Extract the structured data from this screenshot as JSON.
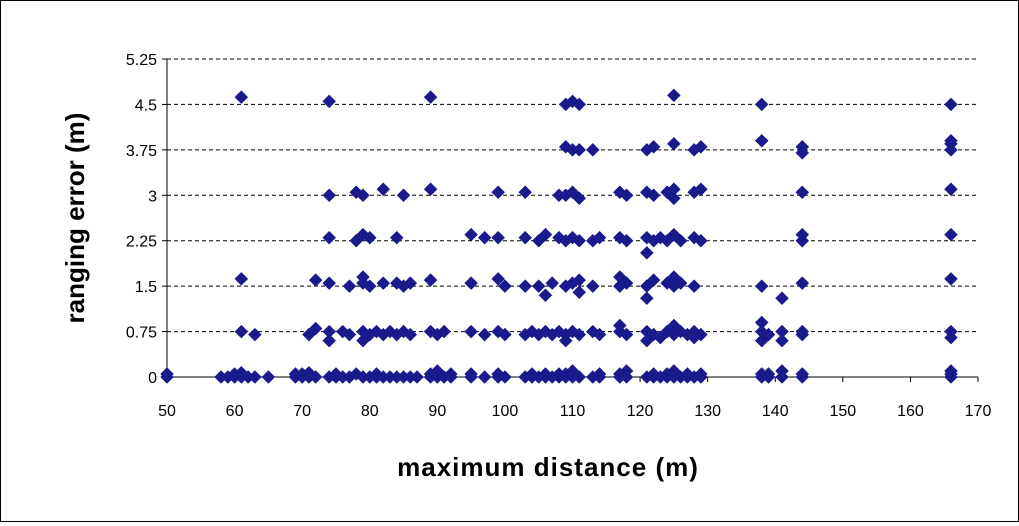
{
  "chart_data": {
    "type": "scatter",
    "title": "",
    "xlabel": "maximum distance (m)",
    "ylabel": "ranging error (m)",
    "xlim": [
      50,
      170
    ],
    "ylim": [
      0,
      5.25
    ],
    "x_ticks": [
      "50",
      "60",
      "70",
      "80",
      "90",
      "100",
      "110",
      "120",
      "130",
      "140",
      "150",
      "160",
      "170"
    ],
    "y_ticks": [
      "0",
      "0.75",
      "1.5",
      "2.25",
      "3",
      "3.75",
      "4.5",
      "5.25"
    ],
    "grid": "horizontal dashed",
    "marker": "diamond",
    "marker_color": "#1a1a8c",
    "legend": "none",
    "points": [
      [
        50,
        0
      ],
      [
        50,
        0.05
      ],
      [
        58,
        0
      ],
      [
        59,
        0
      ],
      [
        60,
        0
      ],
      [
        60,
        0.05
      ],
      [
        61,
        0
      ],
      [
        61,
        0.07
      ],
      [
        61,
        0.75
      ],
      [
        61,
        1.62
      ],
      [
        61,
        4.62
      ],
      [
        62,
        0
      ],
      [
        63,
        0
      ],
      [
        63,
        0.7
      ],
      [
        65,
        0
      ],
      [
        69,
        0
      ],
      [
        69,
        0.05
      ],
      [
        70,
        0
      ],
      [
        70,
        0.05
      ],
      [
        71,
        0
      ],
      [
        71,
        0.07
      ],
      [
        71,
        0.7
      ],
      [
        72,
        0
      ],
      [
        72,
        0.8
      ],
      [
        72,
        1.6
      ],
      [
        74,
        0
      ],
      [
        74,
        0.75
      ],
      [
        74,
        0.6
      ],
      [
        74,
        1.55
      ],
      [
        74,
        2.3
      ],
      [
        74,
        3
      ],
      [
        74,
        4.55
      ],
      [
        75,
        0
      ],
      [
        75,
        0.05
      ],
      [
        76,
        0
      ],
      [
        76,
        0.75
      ],
      [
        77,
        0
      ],
      [
        77,
        1.5
      ],
      [
        77,
        0.7
      ],
      [
        78,
        3.05
      ],
      [
        78,
        0.05
      ],
      [
        78,
        2.25
      ],
      [
        79,
        0
      ],
      [
        79,
        0.75
      ],
      [
        79,
        1.55
      ],
      [
        79,
        2.35
      ],
      [
        79,
        1.65
      ],
      [
        79,
        3.0
      ],
      [
        79,
        0.6
      ],
      [
        80,
        0
      ],
      [
        80,
        0.7
      ],
      [
        80,
        1.5
      ],
      [
        80,
        2.3
      ],
      [
        81,
        0
      ],
      [
        81,
        0.75
      ],
      [
        81,
        0.05
      ],
      [
        82,
        0
      ],
      [
        82,
        1.55
      ],
      [
        82,
        3.1
      ],
      [
        82,
        0.7
      ],
      [
        83,
        0
      ],
      [
        83,
        0.75
      ],
      [
        84,
        0
      ],
      [
        84,
        1.55
      ],
      [
        84,
        0.7
      ],
      [
        84,
        2.3
      ],
      [
        85,
        0
      ],
      [
        85,
        1.5
      ],
      [
        85,
        3.0
      ],
      [
        85,
        0.75
      ],
      [
        86,
        0
      ],
      [
        86,
        1.55
      ],
      [
        86,
        0.7
      ],
      [
        87,
        0
      ],
      [
        89,
        0
      ],
      [
        89,
        0.05
      ],
      [
        89,
        0.75
      ],
      [
        89,
        1.6
      ],
      [
        89,
        3.1
      ],
      [
        89,
        4.62
      ],
      [
        90,
        0
      ],
      [
        90,
        0.7
      ],
      [
        90,
        0.1
      ],
      [
        91,
        0
      ],
      [
        91,
        0.75
      ],
      [
        92,
        0
      ],
      [
        92,
        0.05
      ],
      [
        95,
        0
      ],
      [
        95,
        0.05
      ],
      [
        95,
        0.75
      ],
      [
        95,
        1.55
      ],
      [
        95,
        2.35
      ],
      [
        97,
        0
      ],
      [
        97,
        0.7
      ],
      [
        97,
        2.3
      ],
      [
        99,
        0
      ],
      [
        99,
        0.05
      ],
      [
        99,
        0.75
      ],
      [
        99,
        1.62
      ],
      [
        99,
        2.3
      ],
      [
        99,
        3.05
      ],
      [
        100,
        0
      ],
      [
        100,
        0.7
      ],
      [
        100,
        1.5
      ],
      [
        103,
        0
      ],
      [
        103,
        0.7
      ],
      [
        103,
        1.5
      ],
      [
        103,
        2.3
      ],
      [
        103,
        3.05
      ],
      [
        104,
        0
      ],
      [
        104,
        0.75
      ],
      [
        104,
        0.05
      ],
      [
        105,
        0
      ],
      [
        105,
        0.7
      ],
      [
        105,
        1.5
      ],
      [
        105,
        2.25
      ],
      [
        106,
        0
      ],
      [
        106,
        1.35
      ],
      [
        106,
        0.75
      ],
      [
        106,
        2.35
      ],
      [
        106,
        0.05
      ],
      [
        107,
        0
      ],
      [
        107,
        0.7
      ],
      [
        107,
        1.55
      ],
      [
        108,
        0
      ],
      [
        108,
        0.75
      ],
      [
        108,
        2.3
      ],
      [
        108,
        3.0
      ],
      [
        108,
        0.05
      ],
      [
        109,
        0
      ],
      [
        109,
        0.7
      ],
      [
        109,
        1.5
      ],
      [
        109,
        2.25
      ],
      [
        109,
        3.0
      ],
      [
        109,
        3.8
      ],
      [
        109,
        4.5
      ],
      [
        109,
        0.05
      ],
      [
        109,
        0.6
      ],
      [
        110,
        0
      ],
      [
        110,
        0.75
      ],
      [
        110,
        1.55
      ],
      [
        110,
        2.3
      ],
      [
        110,
        3.05
      ],
      [
        110,
        3.75
      ],
      [
        110,
        4.55
      ],
      [
        110,
        0.1
      ],
      [
        111,
        0
      ],
      [
        111,
        0.7
      ],
      [
        111,
        1.6
      ],
      [
        111,
        2.25
      ],
      [
        111,
        2.95
      ],
      [
        111,
        3.75
      ],
      [
        111,
        4.5
      ],
      [
        111,
        1.4
      ],
      [
        113,
        0
      ],
      [
        113,
        0.75
      ],
      [
        113,
        1.5
      ],
      [
        113,
        2.25
      ],
      [
        113,
        3.75
      ],
      [
        114,
        0
      ],
      [
        114,
        0.7
      ],
      [
        114,
        2.3
      ],
      [
        114,
        0.05
      ],
      [
        117,
        0
      ],
      [
        117,
        0.75
      ],
      [
        117,
        1.5
      ],
      [
        117,
        2.3
      ],
      [
        117,
        3.05
      ],
      [
        117,
        1.65
      ],
      [
        117,
        0.85
      ],
      [
        117,
        0.05
      ],
      [
        118,
        0
      ],
      [
        118,
        0.7
      ],
      [
        118,
        1.55
      ],
      [
        118,
        2.25
      ],
      [
        118,
        3.0
      ],
      [
        118,
        0.1
      ],
      [
        121,
        0
      ],
      [
        121,
        0.75
      ],
      [
        121,
        1.3
      ],
      [
        121,
        1.5
      ],
      [
        121,
        2.05
      ],
      [
        121,
        2.3
      ],
      [
        121,
        3.05
      ],
      [
        121,
        3.75
      ],
      [
        121,
        0.6
      ],
      [
        122,
        0
      ],
      [
        122,
        0.7
      ],
      [
        122,
        1.6
      ],
      [
        122,
        2.25
      ],
      [
        122,
        3.0
      ],
      [
        122,
        3.8
      ],
      [
        122,
        0.05
      ],
      [
        123,
        0
      ],
      [
        123,
        0.65
      ],
      [
        123,
        2.3
      ],
      [
        124,
        0
      ],
      [
        124,
        0.75
      ],
      [
        124,
        1.55
      ],
      [
        124,
        2.25
      ],
      [
        124,
        3.05
      ],
      [
        124,
        0.05
      ],
      [
        125,
        0
      ],
      [
        125,
        0.7
      ],
      [
        125,
        0.85
      ],
      [
        125,
        1.5
      ],
      [
        125,
        1.65
      ],
      [
        125,
        2.35
      ],
      [
        125,
        2.95
      ],
      [
        125,
        3.1
      ],
      [
        125,
        3.85
      ],
      [
        125,
        4.65
      ],
      [
        125,
        0.1
      ],
      [
        126,
        0
      ],
      [
        126,
        0.75
      ],
      [
        126,
        1.55
      ],
      [
        126,
        2.25
      ],
      [
        127,
        0
      ],
      [
        127,
        0.7
      ],
      [
        127,
        0.05
      ],
      [
        128,
        0
      ],
      [
        128,
        0.75
      ],
      [
        128,
        1.5
      ],
      [
        128,
        2.3
      ],
      [
        128,
        3.05
      ],
      [
        128,
        3.75
      ],
      [
        128,
        0.65
      ],
      [
        129,
        0
      ],
      [
        129,
        0.7
      ],
      [
        129,
        2.25
      ],
      [
        129,
        3.1
      ],
      [
        129,
        3.8
      ],
      [
        129,
        0.05
      ],
      [
        138,
        0
      ],
      [
        138,
        0.6
      ],
      [
        138,
        0.75
      ],
      [
        138,
        0.9
      ],
      [
        138,
        1.5
      ],
      [
        138,
        3.9
      ],
      [
        138,
        4.5
      ],
      [
        138,
        0.05
      ],
      [
        139,
        0
      ],
      [
        139,
        0.7
      ],
      [
        139,
        0.05
      ],
      [
        141,
        0
      ],
      [
        141,
        0.75
      ],
      [
        141,
        0.6
      ],
      [
        141,
        1.3
      ],
      [
        141,
        0.1
      ],
      [
        144,
        0
      ],
      [
        144,
        0.7
      ],
      [
        144,
        0.75
      ],
      [
        144,
        1.55
      ],
      [
        144,
        2.25
      ],
      [
        144,
        2.35
      ],
      [
        144,
        3.05
      ],
      [
        144,
        3.7
      ],
      [
        144,
        3.8
      ],
      [
        144,
        0.05
      ],
      [
        166,
        0
      ],
      [
        166,
        0.05
      ],
      [
        166,
        0.1
      ],
      [
        166,
        0.65
      ],
      [
        166,
        0.75
      ],
      [
        166,
        1.62
      ],
      [
        166,
        2.35
      ],
      [
        166,
        3.1
      ],
      [
        166,
        3.75
      ],
      [
        166,
        3.85
      ],
      [
        166,
        3.9
      ],
      [
        166,
        4.5
      ]
    ]
  }
}
